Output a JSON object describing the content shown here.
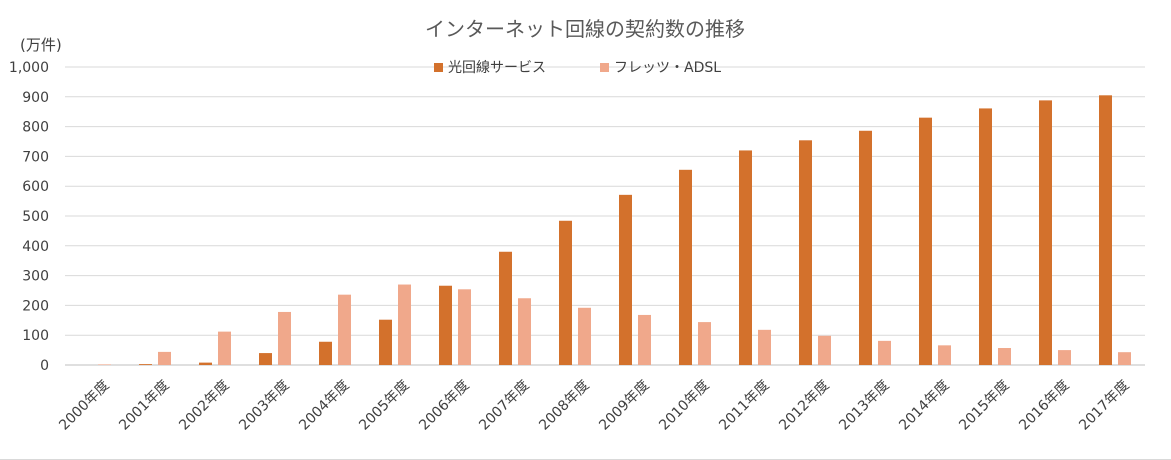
{
  "chart_data": {
    "type": "bar",
    "title": "インターネット回線の契約数の推移",
    "ylabel": "(万件)",
    "xlabel": "",
    "ylim": [
      0,
      1000
    ],
    "yticks": [
      0,
      100,
      200,
      300,
      400,
      500,
      600,
      700,
      800,
      900,
      1000
    ],
    "ytick_labels": [
      "0",
      "100",
      "200",
      "300",
      "400",
      "500",
      "600",
      "700",
      "800",
      "900",
      "1,000"
    ],
    "categories": [
      "2000年度",
      "2001年度",
      "2002年度",
      "2003年度",
      "2004年度",
      "2005年度",
      "2006年度",
      "2007年度",
      "2008年度",
      "2009年度",
      "2010年度",
      "2011年度",
      "2012年度",
      "2013年度",
      "2014年度",
      "2015年度",
      "2016年度",
      "2017年度"
    ],
    "series": [
      {
        "name": "光回線サービス",
        "color": "#d3712c",
        "values": [
          0,
          3,
          8,
          40,
          78,
          152,
          266,
          380,
          484,
          571,
          655,
          720,
          754,
          786,
          830,
          861,
          888,
          905
        ]
      },
      {
        "name": "フレッツ・ADSL",
        "color": "#f0a88b",
        "values": [
          2,
          44,
          112,
          178,
          236,
          270,
          254,
          224,
          192,
          168,
          144,
          118,
          98,
          81,
          66,
          57,
          50,
          43
        ]
      }
    ],
    "legend": "top-center",
    "grid": true
  }
}
